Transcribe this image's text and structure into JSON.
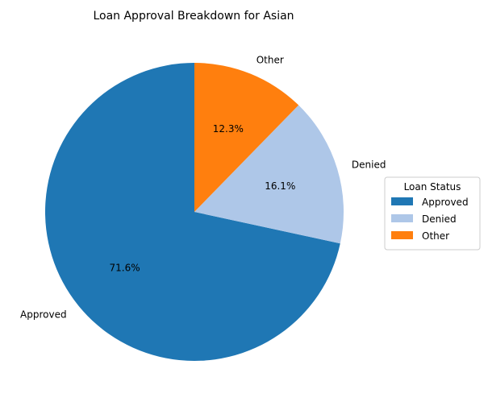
{
  "chart_data": {
    "type": "pie",
    "title": "Loan Approval Breakdown for Asian",
    "slices": [
      {
        "label": "Approved",
        "value": 71.6,
        "pct_label": "71.6%",
        "color": "#1f77b4"
      },
      {
        "label": "Denied",
        "value": 16.1,
        "pct_label": "16.1%",
        "color": "#aec7e8"
      },
      {
        "label": "Other",
        "value": 12.3,
        "pct_label": "12.3%",
        "color": "#ff7f0e"
      }
    ],
    "start_angle_deg": 90,
    "direction": "counterclockwise",
    "legend": {
      "title": "Loan Status",
      "placement": "right",
      "entries": [
        "Approved",
        "Denied",
        "Other"
      ]
    }
  }
}
